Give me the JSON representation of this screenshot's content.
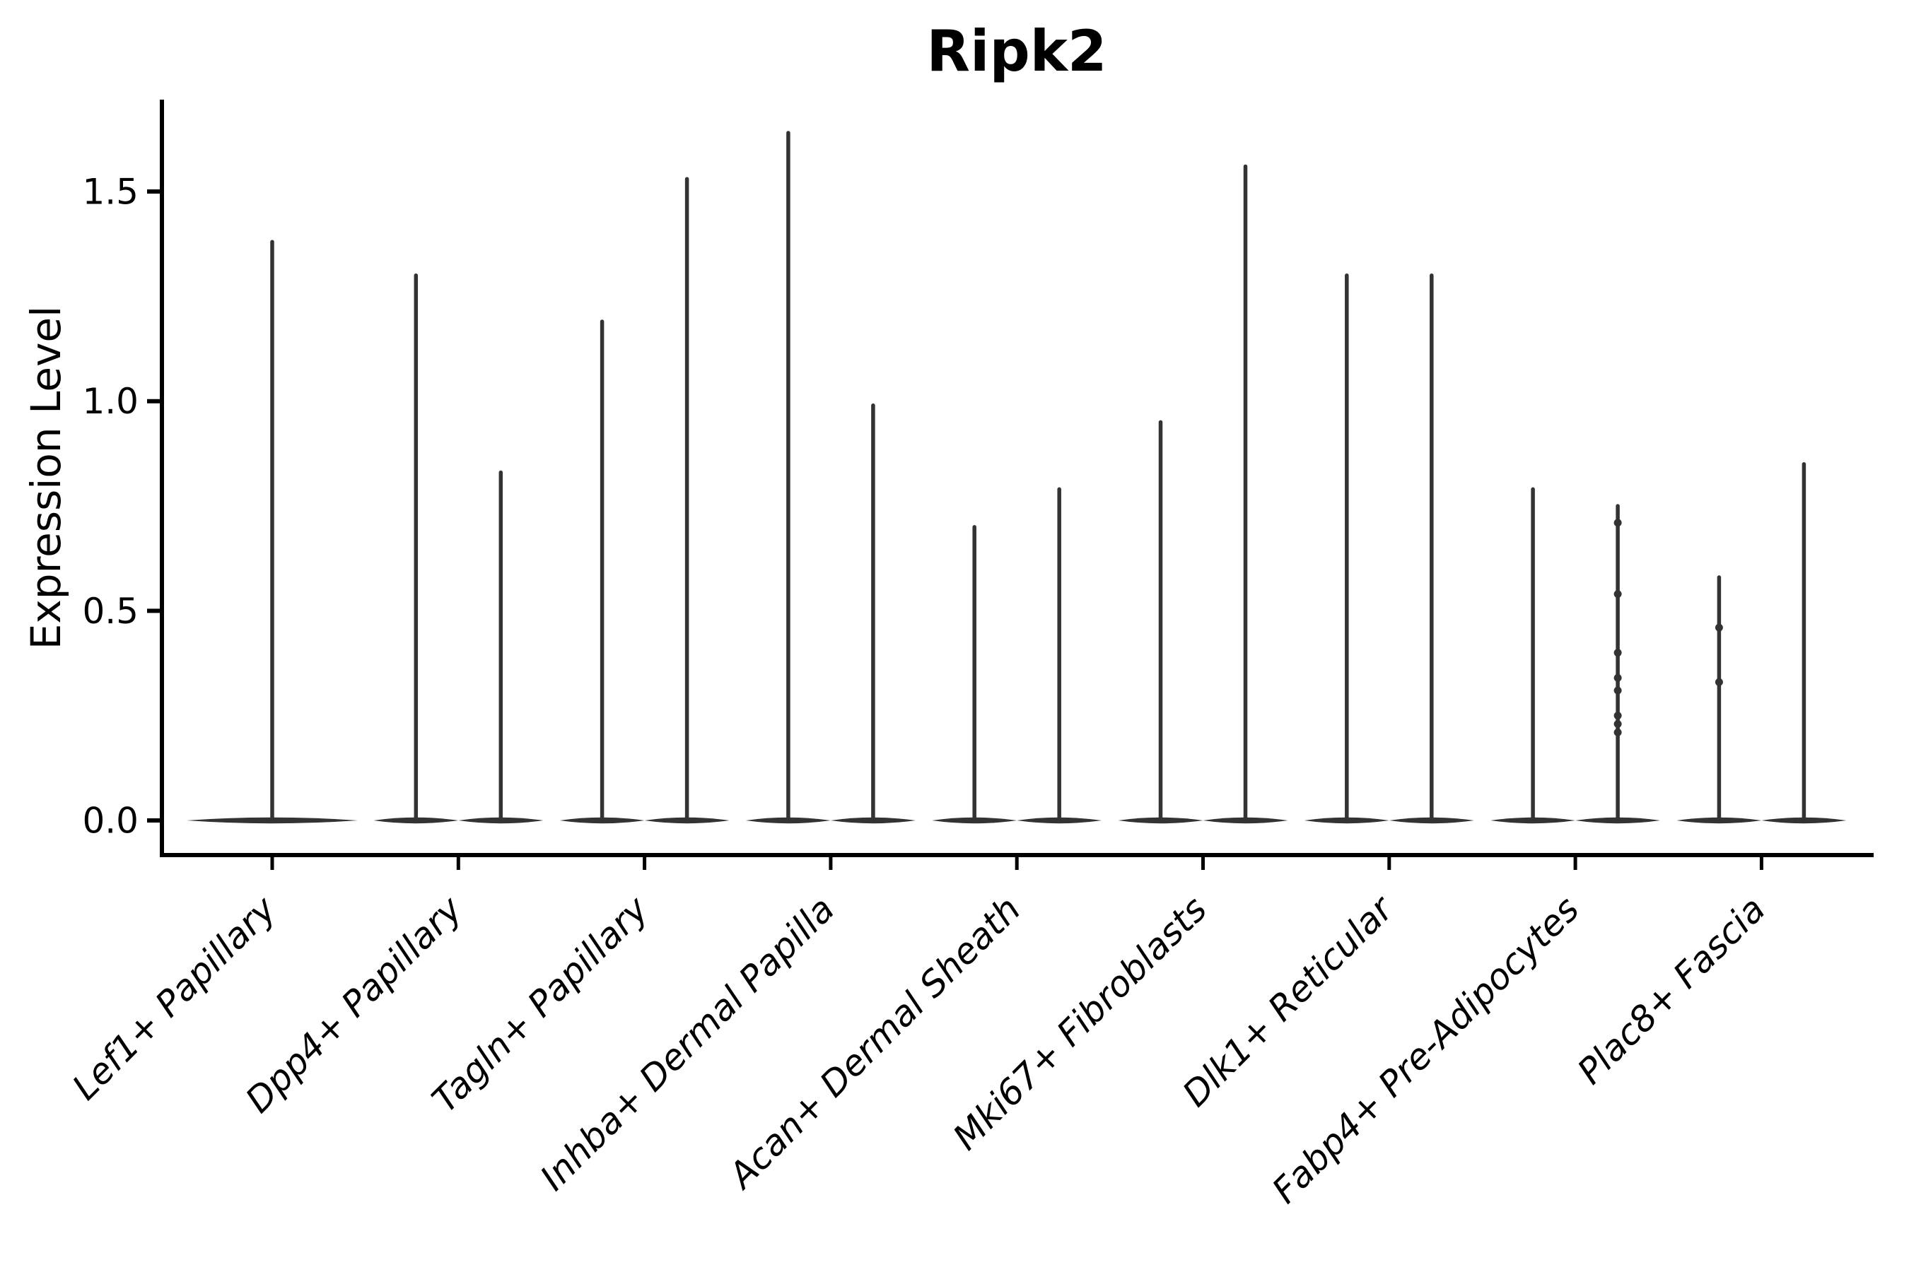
{
  "figure": {
    "title": "Ripk2"
  },
  "chart_data": {
    "type": "violin",
    "title": "Ripk2",
    "ylabel": "Expression Level",
    "xlabel": "",
    "grid": false,
    "legend_position": "none",
    "background_color": "#ffffff",
    "violin_line_color": "#333333",
    "axis_color": "#000000",
    "ylim": [
      -0.08,
      1.72
    ],
    "yticks": [
      0.0,
      0.5,
      1.0,
      1.5
    ],
    "ytick_labels": [
      "0.0",
      "0.5",
      "1.0",
      "1.5"
    ],
    "xtick_label_rotation_deg": 45,
    "xtick_label_style": "italic",
    "categories": [
      "Lef1+ Papillary",
      "Dpp4+ Papillary",
      "Tagln+ Papillary",
      "Inhba+ Dermal Papilla",
      "Acan+ Dermal Sheath",
      "Mki67+ Fibroblasts",
      "Dlk1+ Reticular",
      "Fabp4+ Pre-Adipocytes",
      "Plac8+ Fascia"
    ],
    "violins": [
      {
        "category": "Lef1+ Papillary",
        "maxima": [
          1.38
        ],
        "points": [
          []
        ]
      },
      {
        "category": "Dpp4+ Papillary",
        "maxima": [
          1.3,
          0.83
        ],
        "points": [
          [],
          []
        ]
      },
      {
        "category": "Tagln+ Papillary",
        "maxima": [
          1.19,
          1.53
        ],
        "points": [
          [],
          []
        ]
      },
      {
        "category": "Inhba+ Dermal Papilla",
        "maxima": [
          1.64,
          0.99
        ],
        "points": [
          [],
          []
        ]
      },
      {
        "category": "Acan+ Dermal Sheath",
        "maxima": [
          0.7,
          0.79
        ],
        "points": [
          [],
          []
        ]
      },
      {
        "category": "Mki67+ Fibroblasts",
        "maxima": [
          0.95,
          1.56
        ],
        "points": [
          [],
          []
        ]
      },
      {
        "category": "Dlk1+ Reticular",
        "maxima": [
          1.3,
          1.3
        ],
        "points": [
          [],
          []
        ]
      },
      {
        "category": "Fabp4+ Pre-Adipocytes",
        "maxima": [
          0.79,
          0.75
        ],
        "points": [
          [],
          [
            0.71,
            0.54,
            0.4,
            0.34,
            0.31,
            0.25,
            0.23,
            0.21
          ]
        ]
      },
      {
        "category": "Plac8+ Fascia",
        "maxima": [
          0.58,
          0.85
        ],
        "points": [
          [
            0.46,
            0.33
          ],
          []
        ]
      }
    ],
    "description": "Violin plot of Ripk2 expression level per fibroblast cluster; most cells at 0 giving flat wide bases with thin spikes to max expression."
  }
}
